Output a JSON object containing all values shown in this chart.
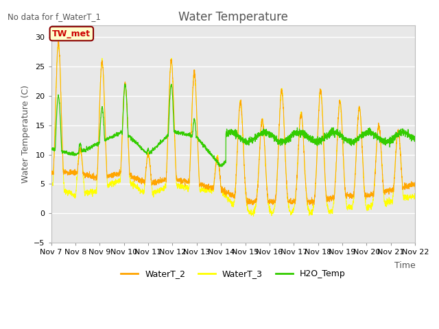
{
  "title": "Water Temperature",
  "ylabel": "Water Temperature (C)",
  "xlabel": "Time",
  "top_left_text": "No data for f_WaterT_1",
  "annotation_box": "TW_met",
  "ylim": [
    -5,
    32
  ],
  "yticks": [
    -5,
    0,
    5,
    10,
    15,
    20,
    25,
    30
  ],
  "xlim_days": [
    7,
    22
  ],
  "xtick_labels": [
    "Nov 7",
    "Nov 8",
    "Nov 9",
    "Nov 10",
    "Nov 11",
    "Nov 12",
    "Nov 13",
    "Nov 14",
    "Nov 15",
    "Nov 16",
    "Nov 17",
    "Nov 18",
    "Nov 19",
    "Nov 20",
    "Nov 21",
    "Nov 22"
  ],
  "colors": {
    "WaterT_2": "#FFA500",
    "WaterT_3": "#FFFF00",
    "H2O_Temp": "#33CC00",
    "annotation_bg": "#FFFFCC",
    "annotation_border": "#8B0000",
    "annotation_text": "#CC0000",
    "plot_bg": "#E8E8E8",
    "grid_color": "#FFFFFF",
    "text_color": "#555555",
    "spine_color": "#BBBBBB"
  },
  "title_fontsize": 12,
  "axis_label_fontsize": 9,
  "tick_fontsize": 8,
  "figsize": [
    6.4,
    4.8
  ],
  "dpi": 100
}
